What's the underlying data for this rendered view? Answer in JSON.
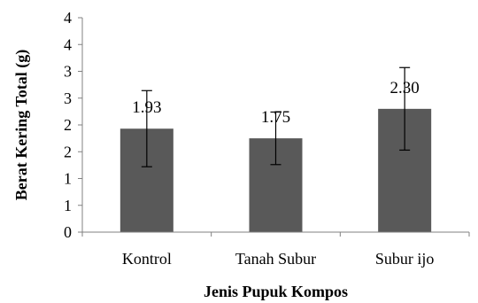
{
  "chart_data": {
    "type": "bar",
    "xlabel": "Jenis Pupuk Kompos",
    "ylabel": "Berat Kering Total (g)",
    "categories": [
      "Kontrol",
      "Tanah Subur",
      "Subur ijo"
    ],
    "values": [
      1.93,
      1.75,
      2.3
    ],
    "value_labels": [
      "1.93",
      "1.75",
      "2.30"
    ],
    "error_bars": [
      {
        "low": 1.22,
        "high": 2.64
      },
      {
        "low": 1.26,
        "high": 2.24
      },
      {
        "low": 1.53,
        "high": 3.07
      }
    ],
    "y_ticks": [
      {
        "value": 0,
        "label": "0"
      },
      {
        "value": 0.5,
        "label": "1"
      },
      {
        "value": 1.0,
        "label": "1"
      },
      {
        "value": 1.5,
        "label": "2"
      },
      {
        "value": 2.0,
        "label": "2"
      },
      {
        "value": 2.5,
        "label": "3"
      },
      {
        "value": 3.0,
        "label": "3"
      },
      {
        "value": 3.5,
        "label": "4"
      },
      {
        "value": 4.0,
        "label": "4"
      }
    ],
    "ylim": [
      0,
      4
    ],
    "bar_color": "#595959",
    "grid": false,
    "legend": "none"
  }
}
